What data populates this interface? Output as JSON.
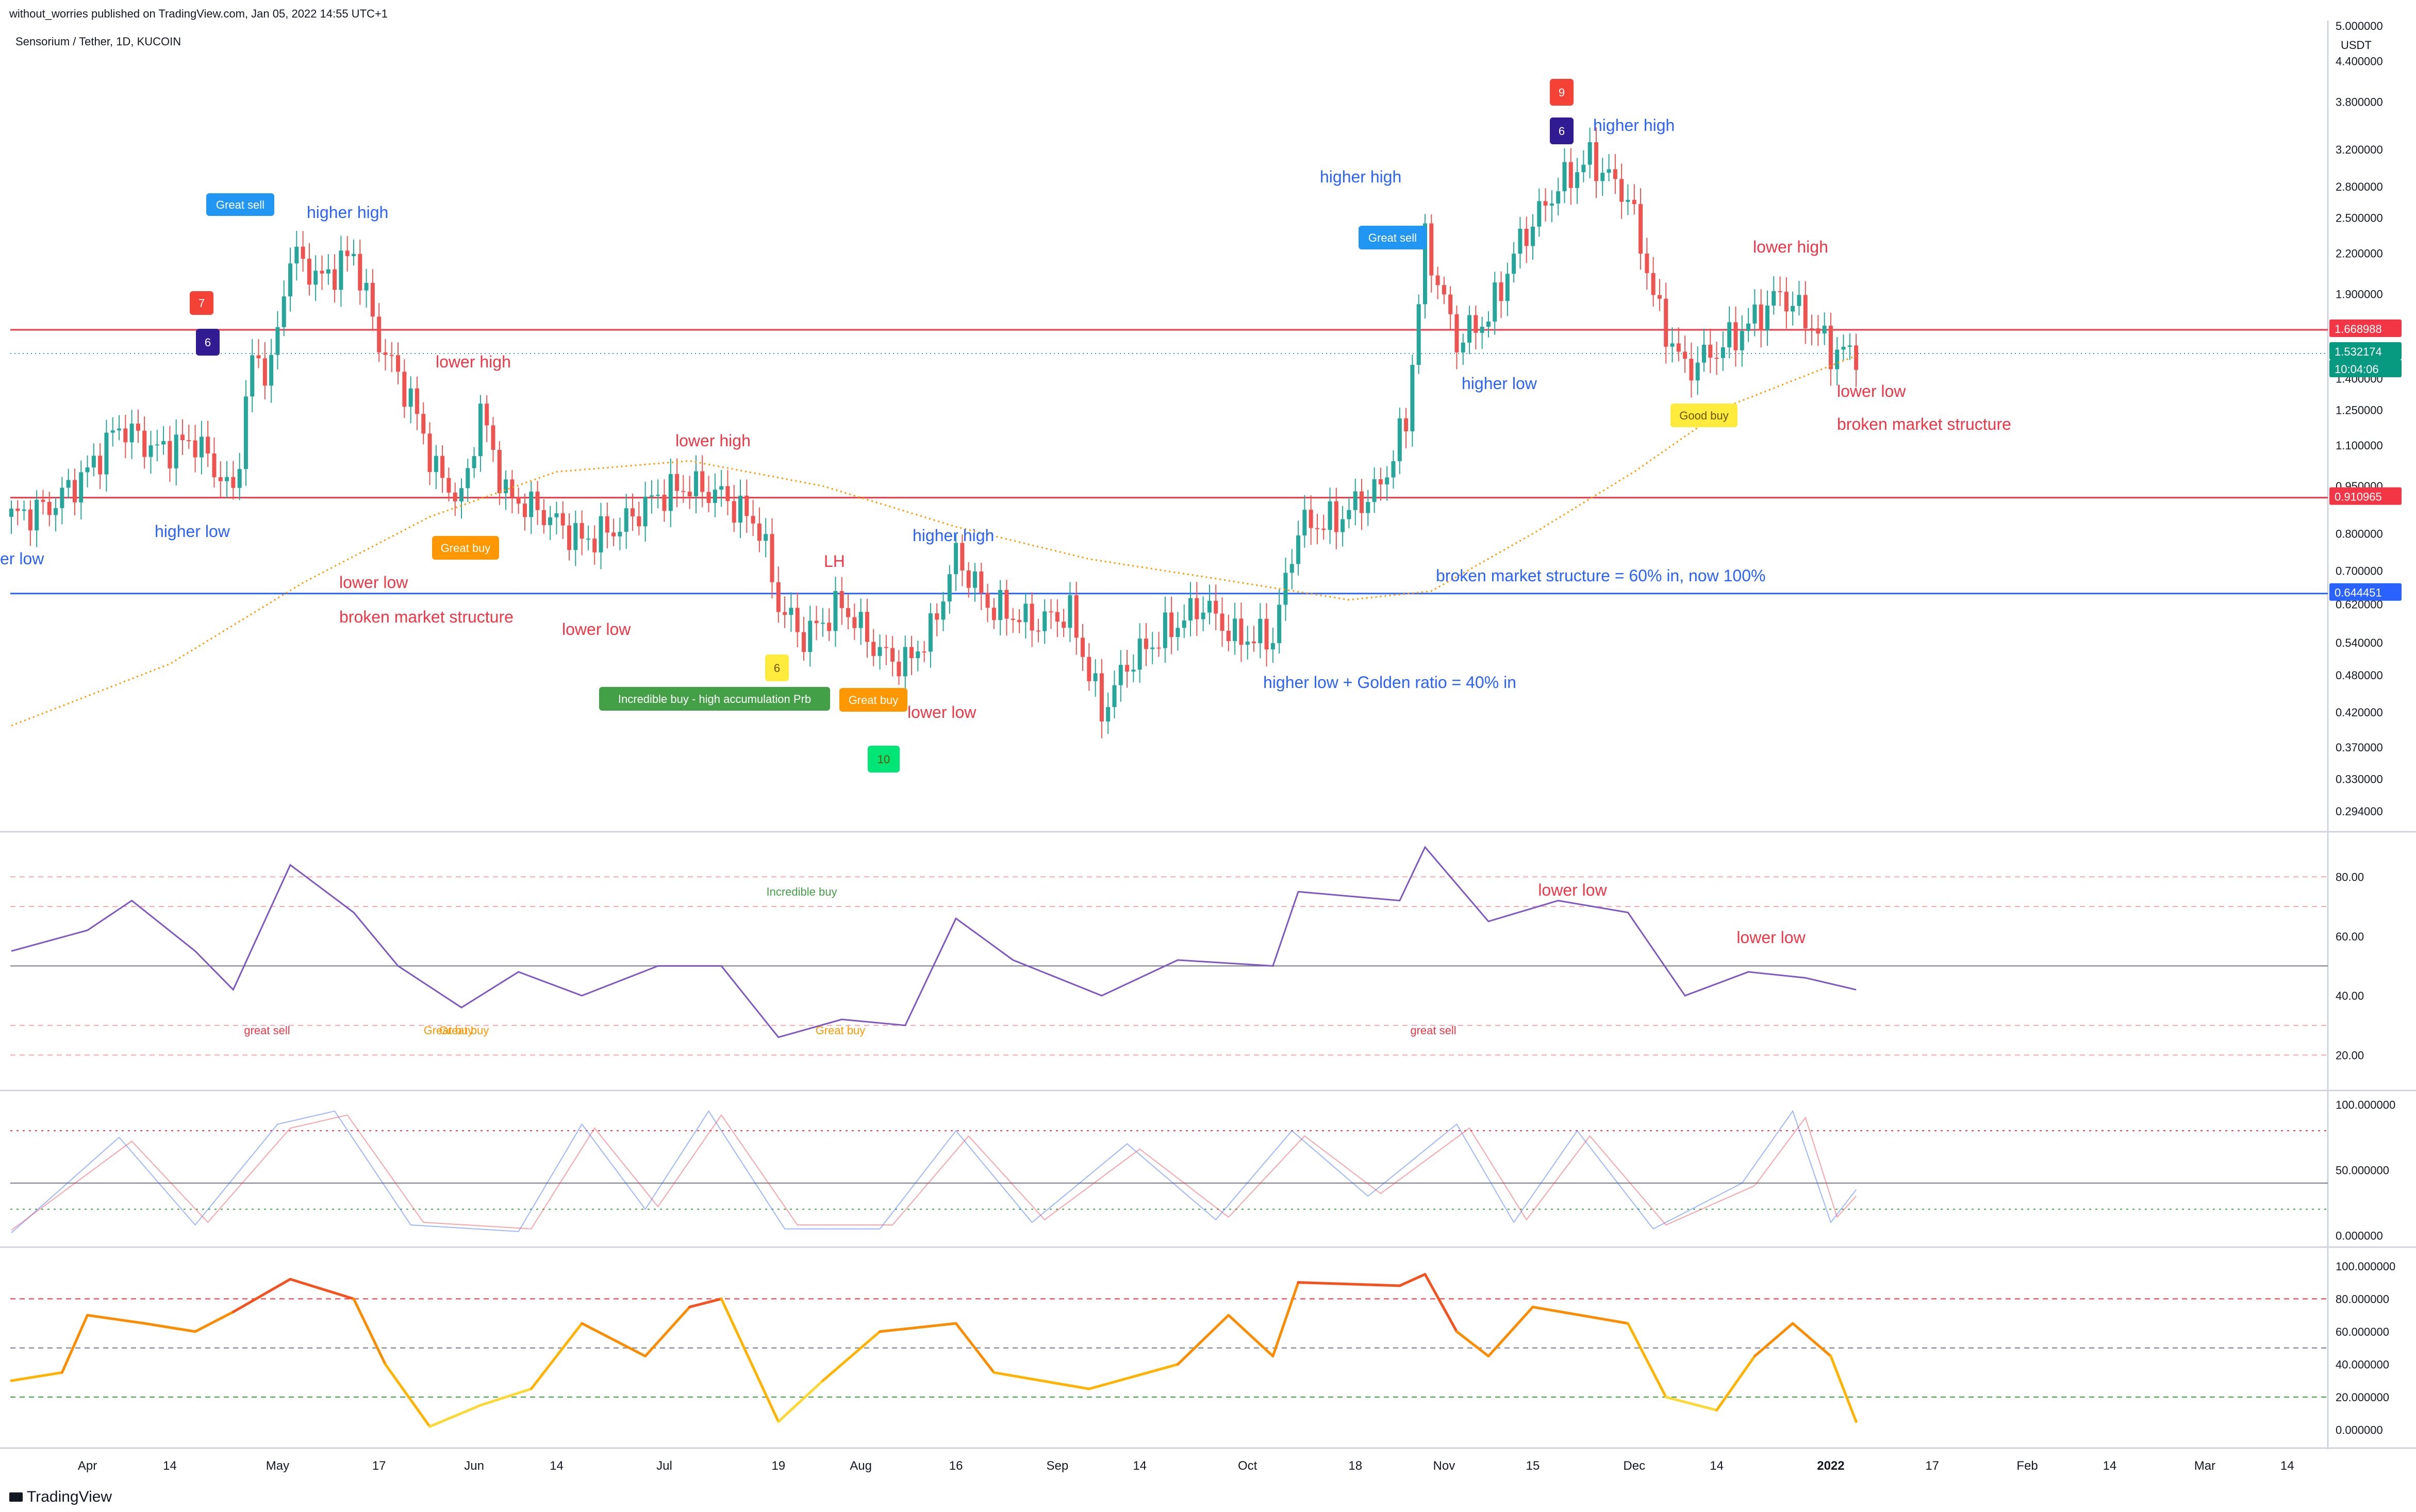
{
  "header": {
    "published": "without_worries published on TradingView.com, Jan 05, 2022 14:55 UTC+1",
    "symbol": "Sensorium / Tether, 1D, KUCOIN"
  },
  "footer": {
    "brand": "TradingView"
  },
  "price_axis": {
    "currency": "USDT",
    "ticks": [
      "5.000000",
      "4.400000",
      "3.800000",
      "3.200000",
      "2.800000",
      "2.500000",
      "2.200000",
      "1.900000",
      "1.400000",
      "1.250000",
      "1.100000",
      "0.950000",
      "0.800000",
      "0.700000",
      "0.620000",
      "0.540000",
      "0.480000",
      "0.420000",
      "0.370000",
      "0.330000",
      "0.294000"
    ]
  },
  "time_axis": [
    "Apr",
    "14",
    "May",
    "17",
    "Jun",
    "14",
    "Jul",
    "19",
    "Aug",
    "16",
    "Sep",
    "14",
    "Oct",
    "18",
    "Nov",
    "15",
    "Dec",
    "14",
    "2022",
    "17",
    "Feb",
    "14",
    "Mar",
    "14"
  ],
  "price_labels": [
    {
      "text": "1.668988",
      "color": "#f23645"
    },
    {
      "text": "1.532174",
      "color": "#089981"
    },
    {
      "text": "10:04:06",
      "color": "#089981"
    },
    {
      "text": "0.910965",
      "color": "#f23645"
    },
    {
      "text": "0.644451",
      "color": "#2962ff"
    }
  ],
  "colors": {
    "up": "#26a69a",
    "down": "#ef5350",
    "resistance": "#f23645",
    "support": "#2962ff",
    "ma": "#ff9800",
    "blue_text": "#2962ff",
    "red_text": "#f23645"
  },
  "annotations": [
    {
      "text": "er low",
      "color": "blue"
    },
    {
      "text": "higher low",
      "color": "blue"
    },
    {
      "text": "higher high",
      "color": "blue"
    },
    {
      "text": "lower high",
      "color": "red"
    },
    {
      "text": "lower low",
      "color": "red"
    },
    {
      "text": "broken market structure",
      "color": "red"
    },
    {
      "text": "lower high",
      "color": "red"
    },
    {
      "text": "lower low",
      "color": "red"
    },
    {
      "text": "LH",
      "color": "red"
    },
    {
      "text": "higher high",
      "color": "blue"
    },
    {
      "text": "lower low",
      "color": "red"
    },
    {
      "text": "higher high",
      "color": "blue"
    },
    {
      "text": "higher high",
      "color": "blue"
    },
    {
      "text": "higher low",
      "color": "blue"
    },
    {
      "text": "broken market structure = 60% in, now 100%",
      "color": "blue"
    },
    {
      "text": "higher low + Golden ratio = 40% in",
      "color": "blue"
    },
    {
      "text": "lower high",
      "color": "red"
    },
    {
      "text": "lower low",
      "color": "red"
    },
    {
      "text": "broken market structure",
      "color": "red"
    }
  ],
  "badges": [
    {
      "text": "Great sell",
      "color": "#2196f3"
    },
    {
      "text": "Great buy",
      "color": "#ff9800"
    },
    {
      "text": "Incredible buy - high accumulation Prb",
      "color": "#43a047"
    },
    {
      "text": "Great buy",
      "color": "#ff9800"
    },
    {
      "text": "Great sell",
      "color": "#2196f3"
    },
    {
      "text": "Good buy",
      "color": "#ffeb3b"
    },
    {
      "text": "7",
      "color": "#f44336"
    },
    {
      "text": "6",
      "color": "#311b92"
    },
    {
      "text": "6",
      "color": "#ffeb3b"
    },
    {
      "text": "10",
      "color": "#00e676"
    },
    {
      "text": "9",
      "color": "#f44336"
    },
    {
      "text": "6",
      "color": "#311b92"
    }
  ],
  "chart_data": [
    {
      "type": "candlestick",
      "title": "Sensorium / Tether, 1D, KUCOIN",
      "ylabel": "USDT",
      "scale": "log",
      "ylim": [
        0.28,
        5.0
      ],
      "x_range": [
        "2021-03-20",
        "2022-03-20"
      ],
      "horizontal_levels": [
        1.668988,
        0.910965,
        0.644451
      ],
      "last_price": 1.532174,
      "close_path": [
        [
          "2021-03-20",
          0.85
        ],
        [
          "2021-03-26",
          0.88
        ],
        [
          "2021-04-01",
          1.0
        ],
        [
          "2021-04-06",
          1.18
        ],
        [
          "2021-04-12",
          1.08
        ],
        [
          "2021-04-18",
          1.12
        ],
        [
          "2021-04-24",
          0.92
        ],
        [
          "2021-04-27",
          1.5
        ],
        [
          "2021-04-30",
          1.45
        ],
        [
          "2021-05-03",
          2.2
        ],
        [
          "2021-05-08",
          2.0
        ],
        [
          "2021-05-13",
          2.2
        ],
        [
          "2021-05-17",
          1.6
        ],
        [
          "2021-05-22",
          1.3
        ],
        [
          "2021-05-26",
          1.0
        ],
        [
          "2021-05-30",
          0.9
        ],
        [
          "2021-06-02",
          1.25
        ],
        [
          "2021-06-06",
          0.92
        ],
        [
          "2021-06-12",
          0.86
        ],
        [
          "2021-06-18",
          0.78
        ],
        [
          "2021-06-24",
          0.82
        ],
        [
          "2021-06-30",
          0.92
        ],
        [
          "2021-07-05",
          0.95
        ],
        [
          "2021-07-10",
          0.92
        ],
        [
          "2021-07-16",
          0.82
        ],
        [
          "2021-07-19",
          0.62
        ],
        [
          "2021-07-23",
          0.55
        ],
        [
          "2021-07-29",
          0.62
        ],
        [
          "2021-08-04",
          0.52
        ],
        [
          "2021-08-08",
          0.5
        ],
        [
          "2021-08-12",
          0.56
        ],
        [
          "2021-08-16",
          0.74
        ],
        [
          "2021-08-21",
          0.62
        ],
        [
          "2021-08-28",
          0.58
        ],
        [
          "2021-09-03",
          0.6
        ],
        [
          "2021-09-08",
          0.42
        ],
        [
          "2021-09-12",
          0.5
        ],
        [
          "2021-09-18",
          0.56
        ],
        [
          "2021-09-24",
          0.62
        ],
        [
          "2021-09-29",
          0.55
        ],
        [
          "2021-10-05",
          0.55
        ],
        [
          "2021-10-09",
          0.82
        ],
        [
          "2021-10-15",
          0.84
        ],
        [
          "2021-10-22",
          0.95
        ],
        [
          "2021-10-26",
          1.2
        ],
        [
          "2021-10-29",
          2.3
        ],
        [
          "2021-11-03",
          1.6
        ],
        [
          "2021-11-08",
          1.75
        ],
        [
          "2021-11-13",
          2.3
        ],
        [
          "2021-11-19",
          2.8
        ],
        [
          "2021-11-24",
          3.1
        ],
        [
          "2021-11-30",
          2.7
        ],
        [
          "2021-12-05",
          1.75
        ],
        [
          "2021-12-09",
          1.45
        ],
        [
          "2021-12-14",
          1.55
        ],
        [
          "2021-12-19",
          1.7
        ],
        [
          "2021-12-24",
          1.9
        ],
        [
          "2021-12-28",
          1.75
        ],
        [
          "2022-01-01",
          1.55
        ],
        [
          "2022-01-05",
          1.53
        ]
      ],
      "ma_path": [
        [
          "2021-03-20",
          0.4
        ],
        [
          "2021-04-14",
          0.5
        ],
        [
          "2021-05-05",
          0.67
        ],
        [
          "2021-05-25",
          0.85
        ],
        [
          "2021-06-14",
          1.0
        ],
        [
          "2021-07-05",
          1.04
        ],
        [
          "2021-07-26",
          0.95
        ],
        [
          "2021-08-16",
          0.82
        ],
        [
          "2021-09-06",
          0.73
        ],
        [
          "2021-09-26",
          0.68
        ],
        [
          "2021-10-17",
          0.63
        ],
        [
          "2021-10-30",
          0.65
        ],
        [
          "2021-11-15",
          0.8
        ],
        [
          "2021-12-01",
          1.0
        ],
        [
          "2021-12-16",
          1.27
        ],
        [
          "2022-01-05",
          1.52
        ]
      ]
    },
    {
      "type": "line",
      "title": "",
      "ylim": [
        10,
        95
      ],
      "ticks": [
        "80.00",
        "60.00",
        "40.00",
        "20.00"
      ],
      "levels": [
        80,
        70,
        50,
        30,
        20
      ],
      "labels": [
        "Incredible buy",
        "great sell",
        "Great buy",
        "Great buy",
        "Great buy",
        "great sell",
        "lower low",
        "lower low"
      ],
      "values_path": [
        [
          "2021-03-20",
          55
        ],
        [
          "2021-04-01",
          62
        ],
        [
          "2021-04-08",
          72
        ],
        [
          "2021-04-18",
          55
        ],
        [
          "2021-04-24",
          42
        ],
        [
          "2021-05-03",
          84
        ],
        [
          "2021-05-13",
          68
        ],
        [
          "2021-05-20",
          50
        ],
        [
          "2021-05-30",
          36
        ],
        [
          "2021-06-08",
          48
        ],
        [
          "2021-06-18",
          40
        ],
        [
          "2021-06-30",
          50
        ],
        [
          "2021-07-10",
          50
        ],
        [
          "2021-07-19",
          26
        ],
        [
          "2021-07-29",
          32
        ],
        [
          "2021-08-08",
          30
        ],
        [
          "2021-08-16",
          66
        ],
        [
          "2021-08-25",
          52
        ],
        [
          "2021-09-08",
          40
        ],
        [
          "2021-09-20",
          52
        ],
        [
          "2021-10-05",
          50
        ],
        [
          "2021-10-09",
          75
        ],
        [
          "2021-10-25",
          72
        ],
        [
          "2021-10-29",
          90
        ],
        [
          "2021-11-08",
          65
        ],
        [
          "2021-11-19",
          72
        ],
        [
          "2021-11-30",
          68
        ],
        [
          "2021-12-09",
          40
        ],
        [
          "2021-12-19",
          48
        ],
        [
          "2021-12-28",
          46
        ],
        [
          "2022-01-05",
          42
        ]
      ]
    },
    {
      "type": "line",
      "title": "",
      "ylim": [
        -5,
        110
      ],
      "ticks": [
        "100.000000",
        "50.000000",
        "0.000000"
      ],
      "levels": [
        80,
        40,
        20
      ],
      "series": [
        {
          "name": "",
          "color": "#2962ff",
          "values_path": [
            [
              "2021-03-20",
              2
            ],
            [
              "2021-04-06",
              75
            ],
            [
              "2021-04-18",
              8
            ],
            [
              "2021-05-01",
              85
            ],
            [
              "2021-05-10",
              95
            ],
            [
              "2021-05-22",
              8
            ],
            [
              "2021-06-08",
              3
            ],
            [
              "2021-06-18",
              85
            ],
            [
              "2021-06-28",
              20
            ],
            [
              "2021-07-08",
              95
            ],
            [
              "2021-07-20",
              5
            ],
            [
              "2021-08-04",
              5
            ],
            [
              "2021-08-16",
              80
            ],
            [
              "2021-08-28",
              10
            ],
            [
              "2021-09-12",
              70
            ],
            [
              "2021-09-26",
              12
            ],
            [
              "2021-10-08",
              80
            ],
            [
              "2021-10-20",
              30
            ],
            [
              "2021-11-03",
              85
            ],
            [
              "2021-11-12",
              10
            ],
            [
              "2021-11-22",
              80
            ],
            [
              "2021-12-04",
              5
            ],
            [
              "2021-12-18",
              40
            ],
            [
              "2021-12-26",
              95
            ],
            [
              "2022-01-01",
              10
            ],
            [
              "2022-01-05",
              35
            ]
          ]
        },
        {
          "name": "",
          "color": "#f23645",
          "values_path": [
            [
              "2021-03-20",
              4
            ],
            [
              "2021-04-08",
              72
            ],
            [
              "2021-04-20",
              10
            ],
            [
              "2021-05-03",
              82
            ],
            [
              "2021-05-12",
              92
            ],
            [
              "2021-05-24",
              10
            ],
            [
              "2021-06-10",
              5
            ],
            [
              "2021-06-20",
              82
            ],
            [
              "2021-06-30",
              22
            ],
            [
              "2021-07-10",
              92
            ],
            [
              "2021-07-22",
              8
            ],
            [
              "2021-08-06",
              8
            ],
            [
              "2021-08-18",
              76
            ],
            [
              "2021-08-30",
              12
            ],
            [
              "2021-09-14",
              66
            ],
            [
              "2021-09-28",
              14
            ],
            [
              "2021-10-10",
              76
            ],
            [
              "2021-10-22",
              32
            ],
            [
              "2021-11-05",
              82
            ],
            [
              "2021-11-14",
              12
            ],
            [
              "2021-11-24",
              76
            ],
            [
              "2021-12-06",
              8
            ],
            [
              "2021-12-20",
              38
            ],
            [
              "2021-12-28",
              90
            ],
            [
              "2022-01-02",
              14
            ],
            [
              "2022-01-05",
              30
            ]
          ]
        }
      ]
    },
    {
      "type": "line",
      "title": "",
      "ylim": [
        -8,
        110
      ],
      "ticks": [
        "100.000000",
        "80.000000",
        "60.000000",
        "40.000000",
        "20.000000",
        "0.000000"
      ],
      "levels": [
        80,
        50,
        20
      ],
      "values_path": [
        [
          "2021-03-20",
          30
        ],
        [
          "2021-03-28",
          35
        ],
        [
          "2021-04-01",
          70
        ],
        [
          "2021-04-10",
          65
        ],
        [
          "2021-04-18",
          60
        ],
        [
          "2021-04-24",
          72
        ],
        [
          "2021-05-03",
          92
        ],
        [
          "2021-05-13",
          80
        ],
        [
          "2021-05-18",
          40
        ],
        [
          "2021-05-25",
          2
        ],
        [
          "2021-06-02",
          15
        ],
        [
          "2021-06-10",
          25
        ],
        [
          "2021-06-18",
          65
        ],
        [
          "2021-06-28",
          45
        ],
        [
          "2021-07-05",
          75
        ],
        [
          "2021-07-10",
          80
        ],
        [
          "2021-07-19",
          5
        ],
        [
          "2021-07-26",
          30
        ],
        [
          "2021-08-04",
          60
        ],
        [
          "2021-08-16",
          65
        ],
        [
          "2021-08-22",
          35
        ],
        [
          "2021-09-06",
          25
        ],
        [
          "2021-09-20",
          40
        ],
        [
          "2021-09-28",
          70
        ],
        [
          "2021-10-05",
          45
        ],
        [
          "2021-10-09",
          90
        ],
        [
          "2021-10-25",
          88
        ],
        [
          "2021-10-29",
          95
        ],
        [
          "2021-11-03",
          60
        ],
        [
          "2021-11-08",
          45
        ],
        [
          "2021-11-15",
          75
        ],
        [
          "2021-11-30",
          65
        ],
        [
          "2021-12-06",
          20
        ],
        [
          "2021-12-14",
          12
        ],
        [
          "2021-12-20",
          45
        ],
        [
          "2021-12-26",
          65
        ],
        [
          "2022-01-01",
          45
        ],
        [
          "2022-01-05",
          5
        ]
      ]
    }
  ]
}
